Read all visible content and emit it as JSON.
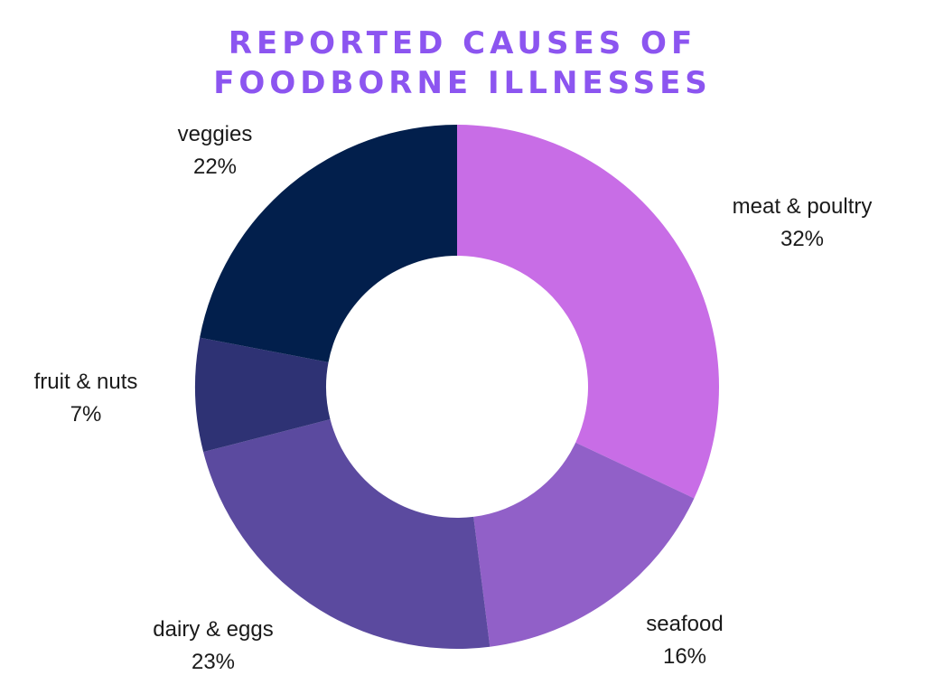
{
  "chart_data": {
    "type": "pie",
    "title_lines": [
      "REPORTED CAUSES OF",
      "FOODBORNE ILLNESSES"
    ],
    "slices": [
      {
        "name": "meat & poultry",
        "value": 32,
        "label": "32%",
        "color": "#c86de6"
      },
      {
        "name": "seafood",
        "value": 16,
        "label": "16%",
        "color": "#9160c8"
      },
      {
        "name": "dairy & eggs",
        "value": 23,
        "label": "23%",
        "color": "#5b4a9f"
      },
      {
        "name": "fruit & nuts",
        "value": 7,
        "label": "7%",
        "color": "#2e3274"
      },
      {
        "name": "veggies",
        "value": 22,
        "label": "22%",
        "color": "#021f4c"
      }
    ],
    "donut": true,
    "title_color": "#8c55f0"
  }
}
